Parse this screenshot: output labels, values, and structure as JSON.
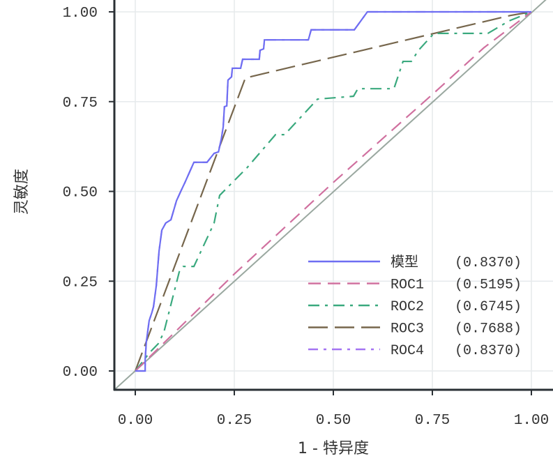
{
  "chart_data": {
    "type": "line",
    "title": "",
    "xlabel": "1 - 特异度",
    "ylabel": "灵敏度",
    "xlim": [
      0,
      1
    ],
    "ylim": [
      0,
      1
    ],
    "xticks": [
      "0.00",
      "0.25",
      "0.50",
      "0.75",
      "1.00"
    ],
    "yticks": [
      "0.00",
      "0.25",
      "0.50",
      "0.75",
      "1.00"
    ],
    "grid": true,
    "legend_position": "bottom-right",
    "reference_line": {
      "x": [
        0,
        1
      ],
      "y": [
        0,
        1
      ],
      "color": "#9aa8a0"
    },
    "series": [
      {
        "name": "模型",
        "auc": "(0.8370)",
        "color": "#6e6ef2",
        "dash": "",
        "x": [
          0,
          0.025,
          0.025,
          0.028,
          0.035,
          0.042,
          0.046,
          0.053,
          0.06,
          0.067,
          0.077,
          0.09,
          0.104,
          0.116,
          0.125,
          0.148,
          0.181,
          0.199,
          0.21,
          0.217,
          0.222,
          0.225,
          0.231,
          0.234,
          0.243,
          0.245,
          0.266,
          0.271,
          0.313,
          0.315,
          0.324,
          0.326,
          0.437,
          0.444,
          0.553,
          0.586,
          1
        ],
        "y": [
          0,
          0,
          0.033,
          0.082,
          0.14,
          0.163,
          0.179,
          0.237,
          0.334,
          0.392,
          0.412,
          0.421,
          0.474,
          0.503,
          0.524,
          0.581,
          0.581,
          0.606,
          0.61,
          0.645,
          0.68,
          0.736,
          0.738,
          0.81,
          0.819,
          0.843,
          0.843,
          0.868,
          0.868,
          0.893,
          0.897,
          0.922,
          0.922,
          0.95,
          0.95,
          1,
          1
        ]
      },
      {
        "name": "ROC1",
        "auc": "(0.5195)",
        "color": "#d0709f",
        "dash": "18 10",
        "x": [
          0,
          0.25,
          0.5,
          0.75,
          0.88,
          1
        ],
        "y": [
          0,
          0.27,
          0.525,
          0.77,
          0.9,
          1
        ]
      },
      {
        "name": "ROC2",
        "auc": "(0.6745)",
        "color": "#3aa97e",
        "dash": "16 8 4 8",
        "x": [
          0,
          0.037,
          0.058,
          0.072,
          0.111,
          0.121,
          0.148,
          0.199,
          0.213,
          0.283,
          0.354,
          0.377,
          0.46,
          0.551,
          0.562,
          0.653,
          0.676,
          0.697,
          0.715,
          0.754,
          0.89,
          0.944,
          1
        ],
        "y": [
          0,
          0.052,
          0.076,
          0.107,
          0.276,
          0.291,
          0.291,
          0.412,
          0.489,
          0.567,
          0.658,
          0.658,
          0.757,
          0.765,
          0.786,
          0.786,
          0.862,
          0.862,
          0.893,
          0.94,
          0.94,
          0.975,
          1
        ]
      },
      {
        "name": "ROC3",
        "auc": "(0.7688)",
        "color": "#76664c",
        "dash": "28 10",
        "x": [
          0,
          0.278,
          0.947,
          1
        ],
        "y": [
          0,
          0.816,
          0.99,
          1
        ]
      },
      {
        "name": "ROC4",
        "auc": "(0.8370)",
        "color": "#a474f2",
        "dash": "14 8 4 8",
        "x": [
          0,
          0.025,
          0.025,
          0.028,
          0.035,
          0.042,
          0.046,
          0.053,
          0.06,
          0.067,
          0.077,
          0.09,
          0.104,
          0.116,
          0.125,
          0.148,
          0.181,
          0.199,
          0.21,
          0.217,
          0.222,
          0.225,
          0.231,
          0.234,
          0.243,
          0.245,
          0.266,
          0.271,
          0.313,
          0.315,
          0.324,
          0.326,
          0.437,
          0.444,
          0.553,
          0.586,
          1
        ],
        "y": [
          0,
          0,
          0.033,
          0.082,
          0.14,
          0.163,
          0.179,
          0.237,
          0.334,
          0.392,
          0.412,
          0.421,
          0.474,
          0.503,
          0.524,
          0.581,
          0.581,
          0.606,
          0.61,
          0.645,
          0.68,
          0.736,
          0.738,
          0.81,
          0.819,
          0.843,
          0.843,
          0.868,
          0.868,
          0.893,
          0.897,
          0.922,
          0.922,
          0.95,
          0.95,
          1,
          1
        ]
      }
    ]
  }
}
